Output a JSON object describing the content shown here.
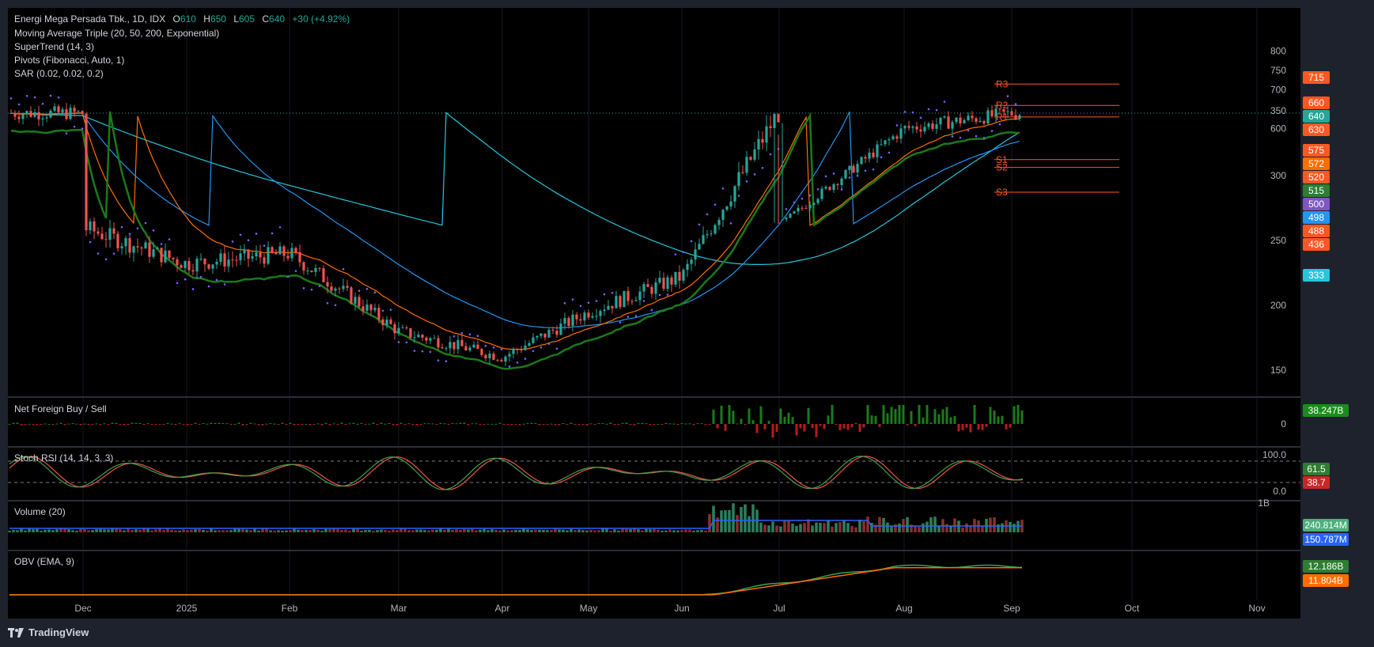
{
  "header": {
    "symbol": "Energi Mega Persada Tbk., 1D, IDX",
    "o_label": "O",
    "o": "610",
    "h_label": "H",
    "h": "650",
    "l_label": "L",
    "l": "605",
    "c_label": "C",
    "c": "640",
    "change": "+30 (+4.92%)"
  },
  "indicators": [
    "Moving Average Triple (20, 50, 200, Exponential)",
    "SuperTrend (14, 3)",
    "Pivots (Fibonacci, Auto, 1)",
    "SAR (0.02, 0.02, 0.2)"
  ],
  "panes": {
    "net_foreign": "Net Foreign Buy / Sell",
    "stoch": "Stoch RSI (14, 14, 3, 3)",
    "volume": "Volume (20)",
    "obv": "OBV (EMA, 9)"
  },
  "footer": {
    "brand": "TradingView"
  },
  "colors": {
    "up": "#26a69a",
    "down": "#ef5350",
    "ema20": "#ff6d00",
    "ema50": "#2196f3",
    "ema200": "#26c6da",
    "supertrend_up": "#1b7a1b",
    "supertrend_down": "#8b1a1a",
    "sar": "#7b61ff",
    "pivot": "#ff5722"
  },
  "chart_data": {
    "type": "candlestick",
    "x_labels": [
      "Dec",
      "2025",
      "Feb",
      "Mar",
      "Apr",
      "May",
      "Jun",
      "Jul",
      "Aug",
      "Sep",
      "Oct",
      "Nov"
    ],
    "price_axis_ticks": [
      150,
      200,
      250,
      300,
      350,
      600,
      700,
      750,
      800
    ],
    "price_keypoints": [
      {
        "m": "Dec",
        "v": 260
      },
      {
        "m": "2025",
        "v": 232
      },
      {
        "m": "Feb",
        "v": 240
      },
      {
        "m": "Mar",
        "v": 180
      },
      {
        "m": "Apr",
        "v": 160
      },
      {
        "m": "May",
        "v": 195
      },
      {
        "m": "Jun",
        "v": 222
      },
      {
        "m": "Jul",
        "v": 350
      },
      {
        "m": "Aug",
        "v": 600
      },
      {
        "m": "Sep",
        "v": 640
      }
    ],
    "current_price": 640,
    "pivots": [
      {
        "label": "R3",
        "value": 715
      },
      {
        "label": "R2",
        "value": 660
      },
      {
        "label": "R1",
        "value": 630
      },
      {
        "label": "S1",
        "value": 520
      },
      {
        "label": "S2",
        "value": 500
      },
      {
        "label": "S3",
        "value": 436
      }
    ],
    "price_badges": [
      {
        "value": "715",
        "color": "#ff5722"
      },
      {
        "value": "660",
        "color": "#ff5722"
      },
      {
        "value": "640",
        "color": "#26a69a"
      },
      {
        "value": "630",
        "color": "#ff5722"
      },
      {
        "value": "575",
        "color": "#ff5722"
      },
      {
        "value": "572",
        "color": "#ff6d00"
      },
      {
        "value": "520",
        "color": "#ff5722"
      },
      {
        "value": "515",
        "color": "#2e7d32"
      },
      {
        "value": "500",
        "color": "#7e57c2"
      },
      {
        "value": "498",
        "color": "#2196f3"
      },
      {
        "value": "488",
        "color": "#ff5722"
      },
      {
        "value": "436",
        "color": "#ff5722"
      },
      {
        "value": "333",
        "color": "#26c6da"
      }
    ],
    "ema200_last": 333,
    "ema50_last": 498,
    "ema20_last": 572,
    "supertrend_last": 515,
    "net_foreign": {
      "last": "38.247B",
      "zero_label": "0"
    },
    "stoch_rsi": {
      "k": "61.5",
      "d": "38.7",
      "upper": "100.0",
      "lower": "0.0"
    },
    "volume": {
      "axis_top": "1B",
      "value": "240.814M",
      "ma": "150.787M"
    },
    "obv": {
      "value": "12.186B",
      "ema": "11.804B"
    }
  }
}
